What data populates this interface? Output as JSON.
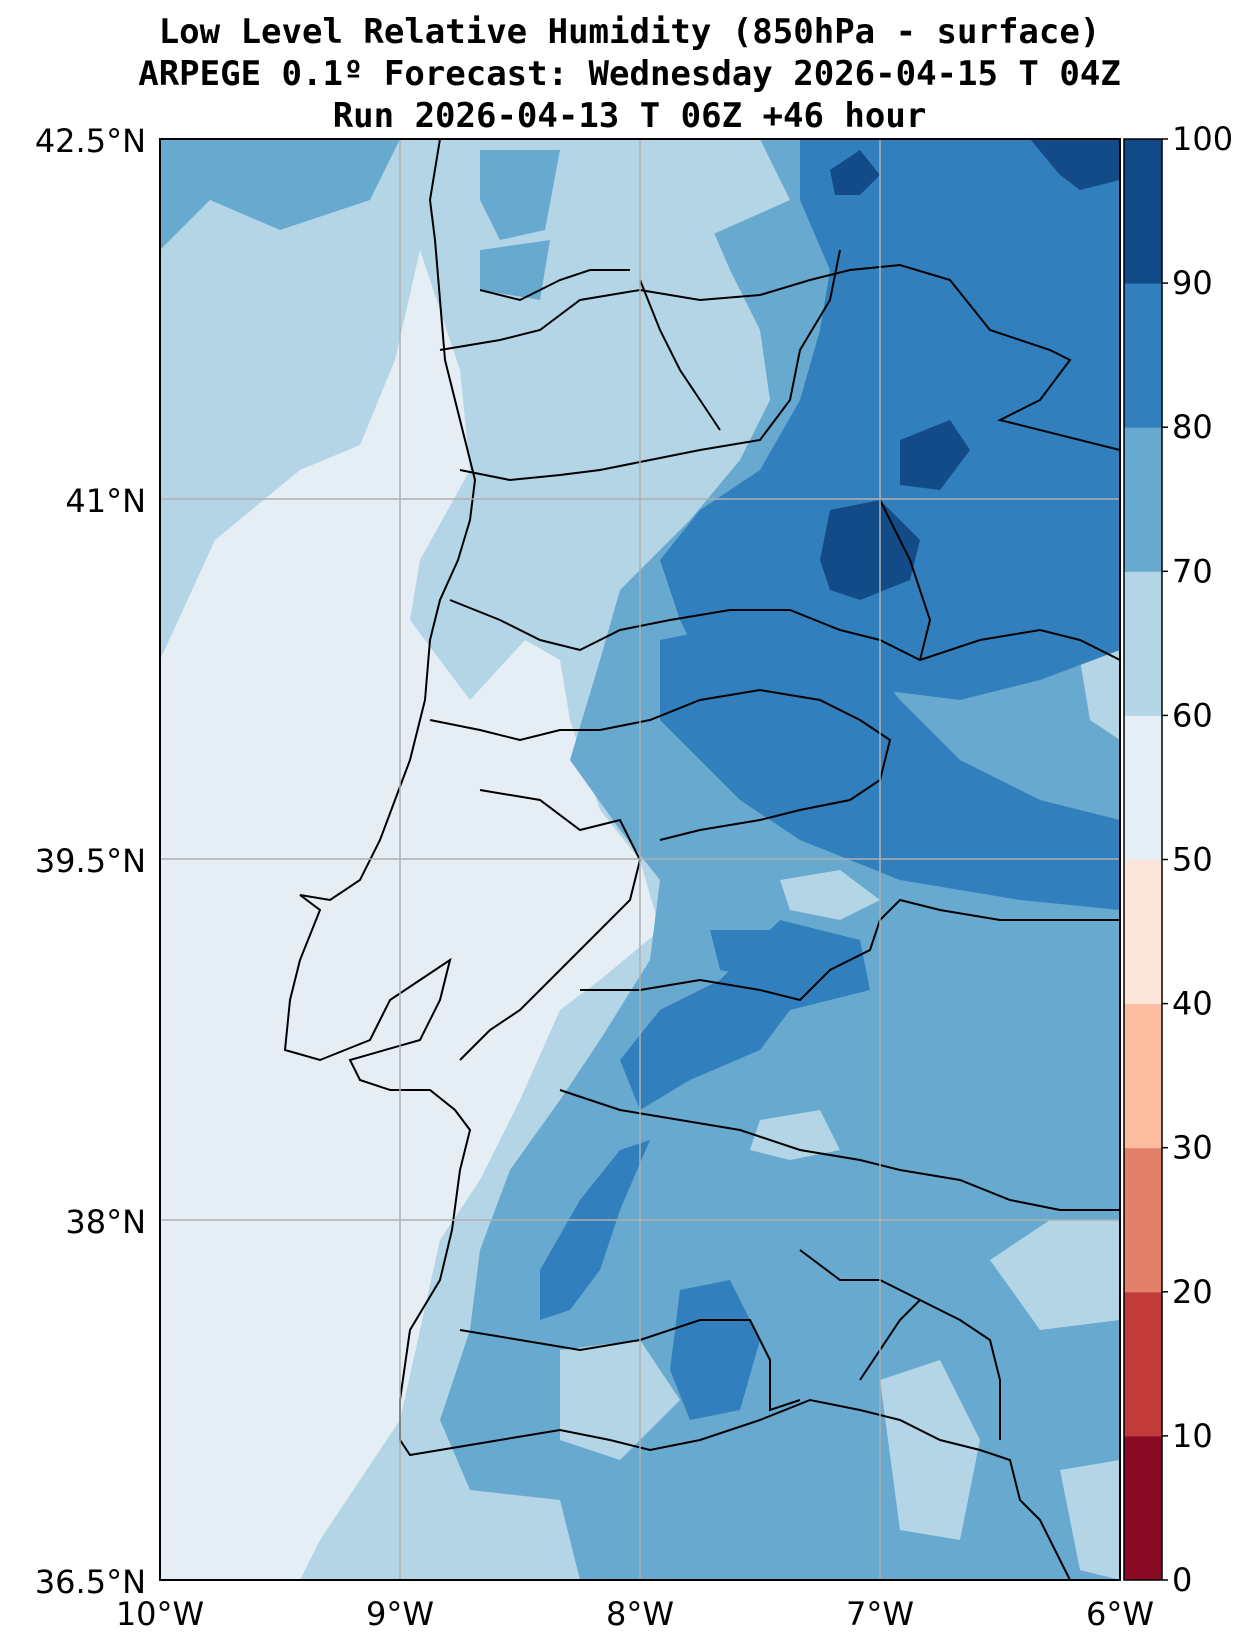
{
  "title_lines": [
    "Low Level Relative Humidity (850hPa - surface)",
    "ARPEGE 0.1º Forecast: Wednesday 2026-04-15 T 04Z",
    "Run 2026-04-13 T 06Z +46 hour"
  ],
  "map": {
    "lon_range": [
      -10,
      -6
    ],
    "lat_range": [
      36.5,
      42.5
    ],
    "lat_ticks": [
      "42.5°N",
      "41°N",
      "39.5°N",
      "38°N",
      "36.5°N"
    ],
    "lon_ticks": [
      "10°W",
      "9°W",
      "8°W",
      "7°W",
      "6°W"
    ]
  },
  "colorbar": {
    "levels": [
      "0",
      "10",
      "20",
      "30",
      "40",
      "50",
      "60",
      "70",
      "80",
      "90",
      "100"
    ],
    "colors": [
      "#8b0a26",
      "#c23b3b",
      "#e3806a",
      "#fbbca0",
      "#fbe5d8",
      "#e5edf5",
      "#b4d5e6",
      "#68a9d0",
      "#3180bd",
      "#134b89"
    ]
  },
  "fill_colors": {
    "level_50_60": "#e5edf5",
    "level_60_70": "#b4d5e6",
    "level_70_80": "#68a9d0",
    "level_80_90": "#3180bd",
    "level_90_100": "#134b89"
  }
}
